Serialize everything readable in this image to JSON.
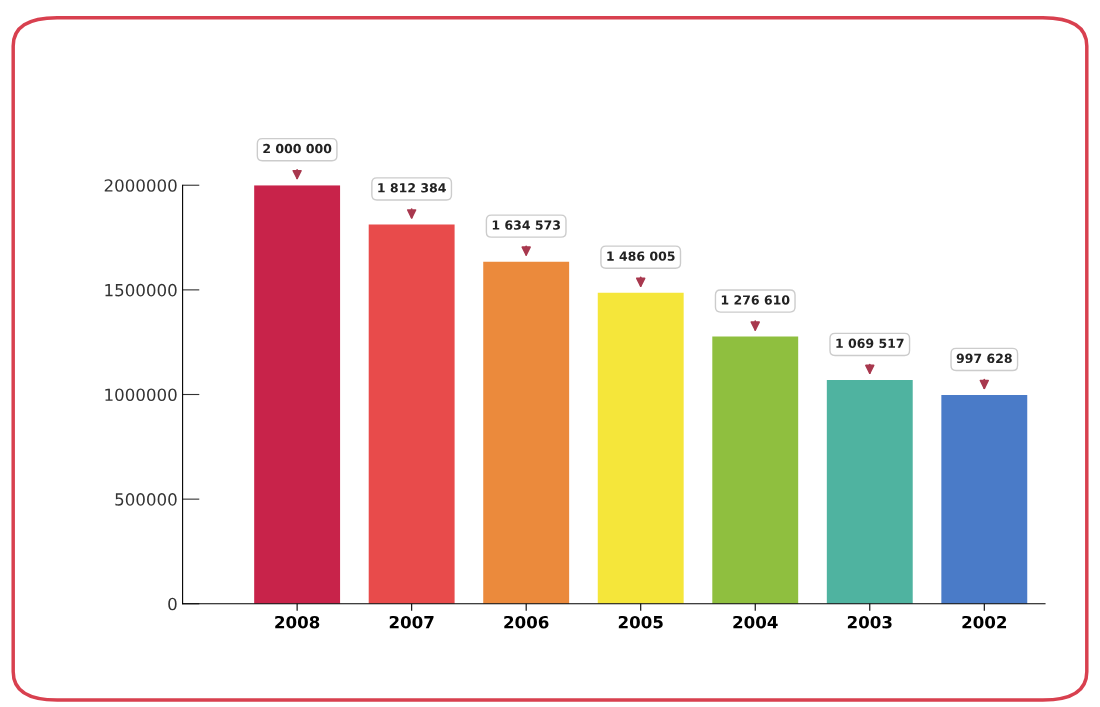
{
  "chart_data": {
    "type": "bar",
    "categories": [
      "2008",
      "2007",
      "2006",
      "2005",
      "2004",
      "2003",
      "2002"
    ],
    "values": [
      2000000,
      1812384,
      1634573,
      1486005,
      1276610,
      1069517,
      997628
    ],
    "colors": [
      "#c8234a",
      "#e84b4b",
      "#eb8a3c",
      "#f5e63a",
      "#8fbf3f",
      "#4fb3a0",
      "#4a7bc8"
    ],
    "value_labels": [
      "2 000 000",
      "1 812 384",
      "1 634 573",
      "1 486 005",
      "1 276 610",
      "1 069 517",
      "997 628"
    ],
    "ylim": [
      0,
      2000000
    ],
    "yticks": [
      0,
      500000,
      1000000,
      1500000,
      2000000
    ],
    "grid": false,
    "legend": false
  }
}
